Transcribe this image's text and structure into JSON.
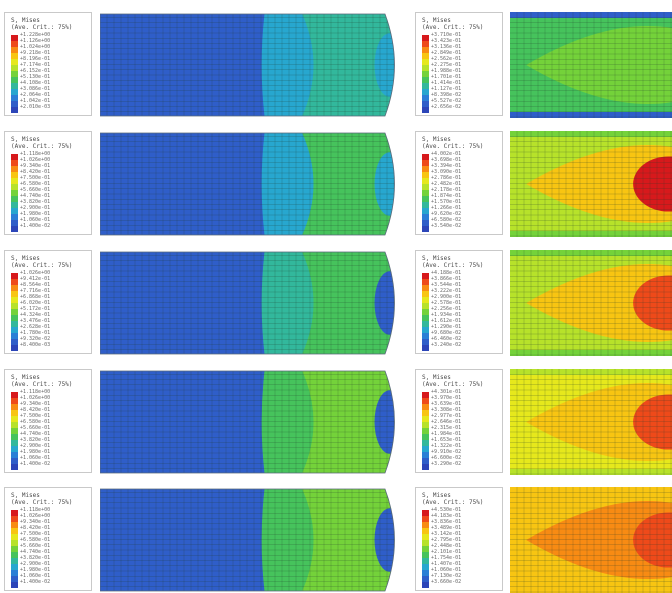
{
  "rows": [
    {
      "left": {
        "legend_title": "S, Mises",
        "legend_subtitle": "(Ave. Crit.: 75%)",
        "values": [
          "+1.228e+00",
          "+1.126e+00",
          "+1.024e+00",
          "+9.218e-01",
          "+8.196e-01",
          "+7.174e-01",
          "+6.152e-01",
          "+5.130e-01",
          "+4.108e-01",
          "+3.086e-01",
          "+2.064e-01",
          "+1.042e-01",
          "+2.010e-03"
        ]
      },
      "right": {
        "legend_title": "S, Mises",
        "legend_subtitle": "(Ave. Crit.: 75%)",
        "values": [
          "+3.710e-01",
          "+3.423e-01",
          "+3.136e-01",
          "+2.849e-01",
          "+2.562e-01",
          "+2.275e-01",
          "+1.988e-01",
          "+1.701e-01",
          "+1.414e-01",
          "+1.127e-01",
          "+8.398e-02",
          "+5.527e-02",
          "+2.656e-02"
        ]
      }
    },
    {
      "left": {
        "legend_title": "S, Mises",
        "legend_subtitle": "(Ave. Crit.: 75%)",
        "values": [
          "+1.118e+00",
          "+1.026e+00",
          "+9.340e-01",
          "+8.420e-01",
          "+7.500e-01",
          "+6.580e-01",
          "+5.660e-01",
          "+4.740e-01",
          "+3.820e-01",
          "+2.900e-01",
          "+1.980e-01",
          "+1.060e-01",
          "+1.400e-02"
        ]
      },
      "right": {
        "legend_title": "S, Mises",
        "legend_subtitle": "(Ave. Crit.: 75%)",
        "values": [
          "+4.002e-01",
          "+3.698e-01",
          "+3.394e-01",
          "+3.090e-01",
          "+2.786e-01",
          "+2.482e-01",
          "+2.178e-01",
          "+1.874e-01",
          "+1.570e-01",
          "+1.266e-01",
          "+9.620e-02",
          "+6.580e-02",
          "+3.540e-02"
        ]
      }
    },
    {
      "left": {
        "legend_title": "S, Mises",
        "legend_subtitle": "(Ave. Crit.: 75%)",
        "values": [
          "+1.026e+00",
          "+9.412e-01",
          "+8.564e-01",
          "+7.716e-01",
          "+6.868e-01",
          "+6.020e-01",
          "+5.172e-01",
          "+4.324e-01",
          "+3.476e-01",
          "+2.628e-01",
          "+1.780e-01",
          "+9.320e-02",
          "+8.400e-03"
        ]
      },
      "right": {
        "legend_title": "S, Mises",
        "legend_subtitle": "(Ave. Crit.: 75%)",
        "values": [
          "+4.188e-01",
          "+3.866e-01",
          "+3.544e-01",
          "+3.222e-01",
          "+2.900e-01",
          "+2.578e-01",
          "+2.256e-01",
          "+1.934e-01",
          "+1.612e-01",
          "+1.290e-01",
          "+9.680e-02",
          "+6.460e-02",
          "+3.240e-02"
        ]
      }
    },
    {
      "left": {
        "legend_title": "S, Mises",
        "legend_subtitle": "(Ave. Crit.: 75%)",
        "values": [
          "+1.118e+00",
          "+1.026e+00",
          "+9.340e-01",
          "+8.420e-01",
          "+7.500e-01",
          "+6.580e-01",
          "+5.660e-01",
          "+4.740e-01",
          "+3.820e-01",
          "+2.900e-01",
          "+1.980e-01",
          "+1.060e-01",
          "+1.400e-02"
        ]
      },
      "right": {
        "legend_title": "S, Mises",
        "legend_subtitle": "(Ave. Crit.: 75%)",
        "values": [
          "+4.301e-01",
          "+3.970e-01",
          "+3.639e-01",
          "+3.308e-01",
          "+2.977e-01",
          "+2.646e-01",
          "+2.315e-01",
          "+1.984e-01",
          "+1.653e-01",
          "+1.322e-01",
          "+9.910e-02",
          "+6.600e-02",
          "+3.290e-02"
        ]
      }
    },
    {
      "left": {
        "legend_title": "S, Mises",
        "legend_subtitle": "(Ave. Crit.: 75%)",
        "values": [
          "+1.118e+00",
          "+1.026e+00",
          "+9.340e-01",
          "+8.420e-01",
          "+7.500e-01",
          "+6.580e-01",
          "+5.660e-01",
          "+4.740e-01",
          "+3.820e-01",
          "+2.900e-01",
          "+1.980e-01",
          "+1.060e-01",
          "+1.400e-02"
        ]
      },
      "right": {
        "legend_title": "S, Mises",
        "legend_subtitle": "(Ave. Crit.: 75%)",
        "values": [
          "+4.530e-01",
          "+4.183e-01",
          "+3.836e-01",
          "+3.489e-01",
          "+3.142e-01",
          "+2.795e-01",
          "+2.448e-01",
          "+2.101e-01",
          "+1.754e-01",
          "+1.407e-01",
          "+1.060e-01",
          "+7.130e-02",
          "+3.660e-02"
        ]
      }
    }
  ],
  "colormap": [
    "#d7191c",
    "#ee4a1a",
    "#f88b13",
    "#f8c512",
    "#e6e81c",
    "#b7e22a",
    "#74d23a",
    "#46c35c",
    "#32b89c",
    "#27a7cf",
    "#2b7fd6",
    "#2f5ec9",
    "#2c45b8"
  ],
  "mesh_line_color": "#223a2a"
}
